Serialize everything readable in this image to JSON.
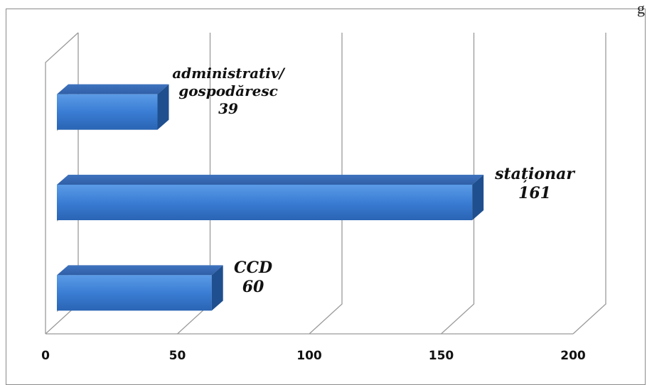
{
  "page": {
    "corner_text": "g"
  },
  "chart_data": {
    "type": "bar",
    "orientation": "horizontal",
    "style": "3d-clustered",
    "categories": [
      "administrativ/ gospodăresc",
      "staționar",
      "CCD"
    ],
    "values": [
      39,
      161,
      60
    ],
    "data_labels": [
      {
        "lines": [
          "administrativ/",
          "gospodăresc",
          "39"
        ]
      },
      {
        "lines": [
          "staționar",
          "161"
        ]
      },
      {
        "lines": [
          "CCD",
          "60"
        ]
      }
    ],
    "x_ticks": [
      "0",
      "50",
      "100",
      "150",
      "200"
    ],
    "xlim": [
      0,
      200
    ],
    "grid": true,
    "legend": "none",
    "title": "",
    "xlabel": "",
    "ylabel": "",
    "colors": {
      "bar_front": "#3b7fd6",
      "bar_top": "#5a96e0",
      "bar_side": "#1f4f8f",
      "grid": "#9a9a9a"
    }
  }
}
